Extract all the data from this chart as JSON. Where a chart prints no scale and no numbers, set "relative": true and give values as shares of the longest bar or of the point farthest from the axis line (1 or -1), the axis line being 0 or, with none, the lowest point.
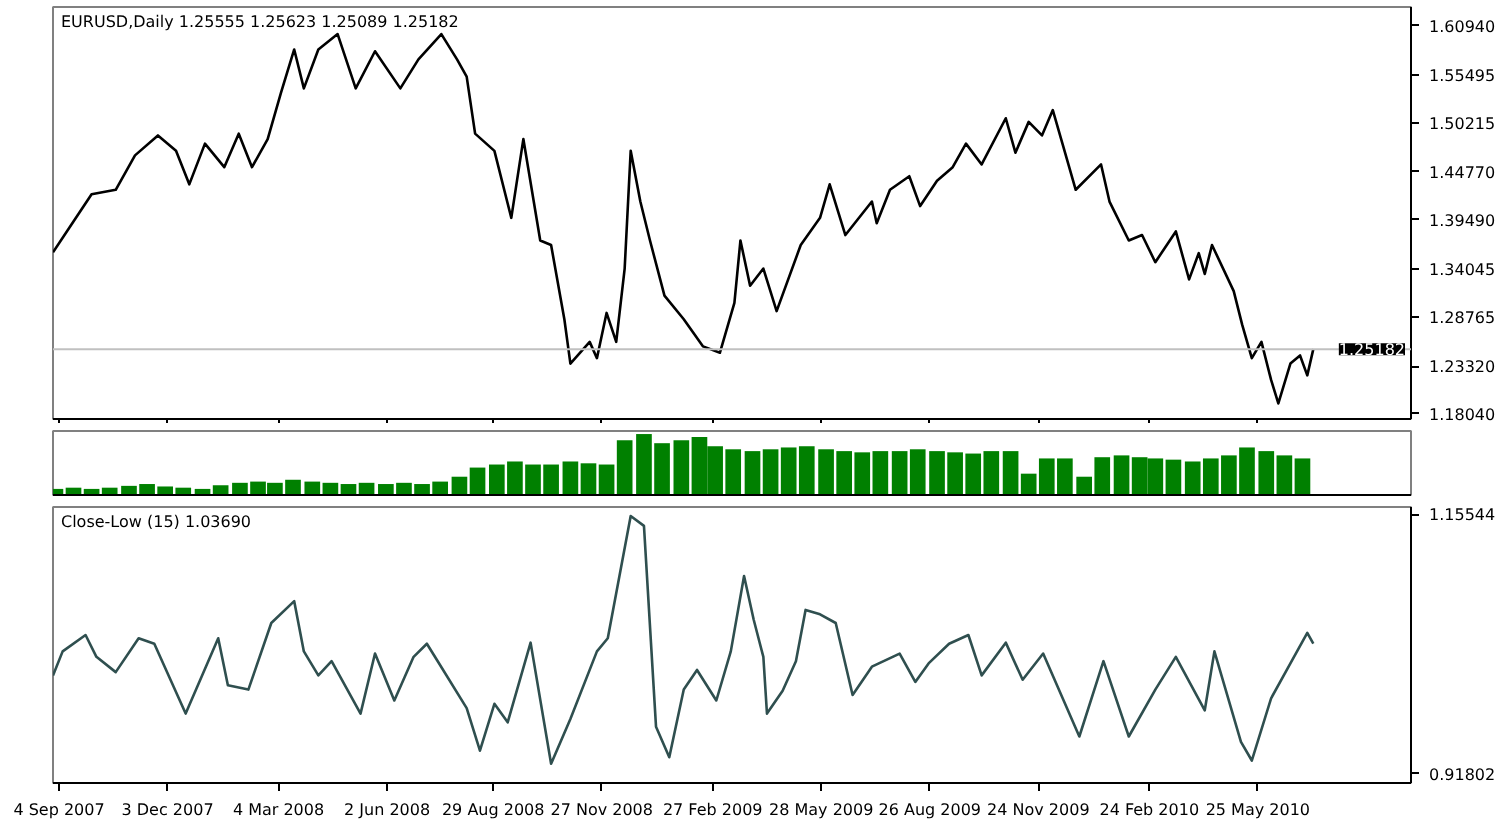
{
  "chart_data": [
    {
      "type": "line",
      "title": "EURUSD,Daily 1.25555 1.25623 1.25089 1.25182",
      "series": [
        {
          "type": "line",
          "color": "#000000",
          "x": [
            "2007-08-30",
            "2007-09-15",
            "2007-10-01",
            "2007-10-21",
            "2007-11-06",
            "2007-11-25",
            "2007-12-10",
            "2007-12-21",
            "2008-01-03",
            "2008-01-19",
            "2008-01-31",
            "2008-02-11",
            "2008-02-24",
            "2008-03-06",
            "2008-03-17",
            "2008-03-25",
            "2008-04-06",
            "2008-04-22",
            "2008-05-07",
            "2008-05-23",
            "2008-06-13",
            "2008-06-28",
            "2008-07-17",
            "2008-07-30",
            "2008-08-07",
            "2008-08-14",
            "2008-08-30",
            "2008-09-13",
            "2008-09-23",
            "2008-10-07",
            "2008-10-16",
            "2008-10-27",
            "2008-11-01",
            "2008-11-17",
            "2008-11-23",
            "2008-12-01",
            "2008-12-09",
            "2008-12-16",
            "2008-12-21",
            "2008-12-29",
            "2009-01-06",
            "2009-01-18",
            "2009-02-03",
            "2009-02-19",
            "2009-03-05",
            "2009-03-17",
            "2009-03-22",
            "2009-03-30",
            "2009-04-10",
            "2009-04-21",
            "2009-05-11",
            "2009-05-27",
            "2009-06-04",
            "2009-06-17",
            "2009-07-09",
            "2009-07-13",
            "2009-07-24",
            "2009-08-09",
            "2009-08-18",
            "2009-09-01",
            "2009-09-14",
            "2009-09-25",
            "2009-10-08",
            "2009-10-28",
            "2009-11-05",
            "2009-11-16",
            "2009-11-27",
            "2009-12-06",
            "2009-12-14",
            "2009-12-25",
            "2010-01-15",
            "2010-01-22",
            "2010-02-07",
            "2010-02-18",
            "2010-03-01",
            "2010-03-18",
            "2010-03-29",
            "2010-04-06",
            "2010-04-11",
            "2010-04-17",
            "2010-05-05",
            "2010-05-12",
            "2010-05-20",
            "2010-05-28",
            "2010-06-05",
            "2010-06-11",
            "2010-06-21",
            "2010-06-29",
            "2010-07-05",
            "2010-07-10"
          ],
          "values": [
            1.359,
            1.391,
            1.423,
            1.428,
            1.466,
            1.488,
            1.471,
            1.434,
            1.479,
            1.453,
            1.49,
            1.453,
            1.484,
            1.535,
            1.583,
            1.54,
            1.583,
            1.6,
            1.54,
            1.581,
            1.54,
            1.572,
            1.6,
            1.572,
            1.553,
            1.49,
            1.471,
            1.397,
            1.484,
            1.372,
            1.367,
            1.285,
            1.236,
            1.26,
            1.242,
            1.292,
            1.26,
            1.341,
            1.471,
            1.415,
            1.372,
            1.311,
            1.285,
            1.255,
            1.248,
            1.303,
            1.372,
            1.322,
            1.341,
            1.294,
            1.367,
            1.397,
            1.434,
            1.378,
            1.415,
            1.391,
            1.428,
            1.443,
            1.41,
            1.438,
            1.453,
            1.479,
            1.456,
            1.507,
            1.469,
            1.503,
            1.488,
            1.516,
            1.479,
            1.428,
            1.456,
            1.415,
            1.372,
            1.378,
            1.348,
            1.382,
            1.329,
            1.358,
            1.335,
            1.367,
            1.316,
            1.279,
            1.242,
            1.26,
            1.218,
            1.192,
            1.236,
            1.245,
            1.223,
            1.252
          ]
        }
      ],
      "xlim": [
        "2007-08-30",
        "2010-09-29"
      ],
      "xticks": [
        {
          "value": "2007-09-04",
          "label": null
        },
        {
          "value": "2007-12-03",
          "label": null
        },
        {
          "value": "2008-03-04",
          "label": null
        },
        {
          "value": "2008-06-02",
          "label": null
        },
        {
          "value": "2008-08-29",
          "label": null
        },
        {
          "value": "2008-11-27",
          "label": null
        },
        {
          "value": "2009-02-27",
          "label": null
        },
        {
          "value": "2009-05-28",
          "label": null
        },
        {
          "value": "2009-08-26",
          "label": null
        },
        {
          "value": "2009-11-24",
          "label": null
        },
        {
          "value": "2010-02-24",
          "label": null
        },
        {
          "value": "2010-05-25",
          "label": null
        }
      ],
      "ylim": [
        1.1748,
        1.6299
      ],
      "yticks": [
        {
          "value": 1.6094,
          "label": "1.60940"
        },
        1.55495,
        1.50215,
        {
          "value": 1.4477,
          "label": "1.44770"
        },
        {
          "value": 1.3949,
          "label": "1.39490"
        },
        1.34045,
        1.28765,
        {
          "value": 1.2332,
          "label": "1.23320"
        },
        {
          "value": 1.1804,
          "label": "1.18040"
        }
      ],
      "ref_lines": [
        {
          "axis": "y",
          "value": 1.25182,
          "label": "1.25182",
          "color": "#c0c0c0"
        }
      ],
      "tick_labels": "y",
      "grid": false,
      "line_style": "solid"
    },
    {
      "type": "bar",
      "relative": true,
      "tick_labels": false,
      "xlim": [
        "2007-08-30",
        "2010-09-29"
      ],
      "series": [
        {
          "type": "bar",
          "color": "#008000",
          "x": [
            "2007-09-01",
            "2007-09-16",
            "2007-10-01",
            "2007-10-16",
            "2007-11-01",
            "2007-11-16",
            "2007-12-01",
            "2007-12-16",
            "2008-01-01",
            "2008-01-16",
            "2008-02-01",
            "2008-02-16",
            "2008-03-01",
            "2008-03-16",
            "2008-04-01",
            "2008-04-16",
            "2008-05-01",
            "2008-05-16",
            "2008-06-01",
            "2008-06-16",
            "2008-07-01",
            "2008-07-16",
            "2008-08-01",
            "2008-08-16",
            "2008-09-01",
            "2008-09-16",
            "2008-10-01",
            "2008-10-16",
            "2008-11-01",
            "2008-11-16",
            "2008-12-01",
            "2008-12-16",
            "2009-01-01",
            "2009-01-16",
            "2009-02-01",
            "2009-02-16",
            "2009-03-01",
            "2009-03-16",
            "2009-04-01",
            "2009-04-16",
            "2009-05-01",
            "2009-05-16",
            "2009-06-01",
            "2009-06-16",
            "2009-07-01",
            "2009-07-16",
            "2009-08-01",
            "2009-08-16",
            "2009-09-01",
            "2009-09-16",
            "2009-10-01",
            "2009-10-16",
            "2009-11-01",
            "2009-11-16",
            "2009-12-01",
            "2009-12-16",
            "2010-01-01",
            "2010-01-16",
            "2010-02-01",
            "2010-02-16",
            "2010-03-01",
            "2010-03-16",
            "2010-04-01",
            "2010-04-16",
            "2010-05-01",
            "2010-05-16",
            "2010-06-01",
            "2010-06-16",
            "2010-07-01"
          ],
          "values": [
            0.1,
            0.12,
            0.1,
            0.12,
            0.15,
            0.18,
            0.14,
            0.12,
            0.1,
            0.16,
            0.2,
            0.22,
            0.2,
            0.25,
            0.22,
            0.2,
            0.18,
            0.2,
            0.18,
            0.2,
            0.18,
            0.22,
            0.3,
            0.45,
            0.5,
            0.55,
            0.5,
            0.5,
            0.55,
            0.52,
            0.5,
            0.9,
            1.0,
            0.85,
            0.9,
            0.95,
            0.8,
            0.75,
            0.72,
            0.75,
            0.78,
            0.8,
            0.75,
            0.72,
            0.7,
            0.72,
            0.72,
            0.75,
            0.72,
            0.7,
            0.68,
            0.72,
            0.72,
            0.35,
            0.6,
            0.6,
            0.3,
            0.62,
            0.65,
            0.62,
            0.6,
            0.58,
            0.55,
            0.6,
            0.65,
            0.78,
            0.72,
            0.65,
            0.6
          ]
        }
      ]
    },
    {
      "type": "line",
      "title": "Close-Low (15) 1.03690",
      "color": "#2f4f4f",
      "x": [
        "2007-08-30",
        "2007-09-07",
        "2007-09-26",
        "2007-10-05",
        "2007-10-21",
        "2007-11-09",
        "2007-11-22",
        "2007-12-18",
        "2008-01-14",
        "2008-01-22",
        "2008-02-08",
        "2008-02-27",
        "2008-03-17",
        "2008-03-25",
        "2008-04-06",
        "2008-04-17",
        "2008-05-11",
        "2008-05-23",
        "2008-06-08",
        "2008-06-24",
        "2008-07-05",
        "2008-07-14",
        "2008-08-07",
        "2008-08-18",
        "2008-08-30",
        "2008-09-10",
        "2008-09-29",
        "2008-10-16",
        "2008-11-01",
        "2008-11-23",
        "2008-12-02",
        "2008-12-21",
        "2009-01-01",
        "2009-01-11",
        "2009-01-22",
        "2009-02-03",
        "2009-02-14",
        "2009-03-02",
        "2009-03-14",
        "2009-03-25",
        "2009-04-02",
        "2009-04-10",
        "2009-04-13",
        "2009-04-26",
        "2009-05-07",
        "2009-05-15",
        "2009-05-27",
        "2009-06-09",
        "2009-06-23",
        "2009-07-09",
        "2009-08-01",
        "2009-08-14",
        "2009-08-25",
        "2009-09-11",
        "2009-09-27",
        "2009-10-08",
        "2009-10-28",
        "2009-11-11",
        "2009-11-28",
        "2009-12-28",
        "2010-01-17",
        "2010-02-07",
        "2010-03-01",
        "2010-03-18",
        "2010-04-11",
        "2010-04-19",
        "2010-05-11",
        "2010-05-20",
        "2010-06-05",
        "2010-06-21",
        "2010-07-05",
        "2010-07-10"
      ],
      "values": [
        1.008,
        1.03,
        1.045,
        1.025,
        1.011,
        1.042,
        1.037,
        0.973,
        1.042,
        0.999,
        0.995,
        1.056,
        1.076,
        1.03,
        1.008,
        1.021,
        0.973,
        1.028,
        0.985,
        1.025,
        1.037,
        1.021,
        0.978,
        0.939,
        0.982,
        0.965,
        1.038,
        0.927,
        0.968,
        1.03,
        1.042,
        1.154,
        1.145,
        0.961,
        0.933,
        0.995,
        1.013,
        0.985,
        1.03,
        1.099,
        1.059,
        1.025,
        0.973,
        0.994,
        1.021,
        1.068,
        1.064,
        1.056,
        0.99,
        1.016,
        1.028,
        1.002,
        1.019,
        1.037,
        1.045,
        1.008,
        1.038,
        1.004,
        1.028,
        0.952,
        1.021,
        0.952,
        0.995,
        1.025,
        0.976,
        1.03,
        0.947,
        0.93,
        0.987,
        1.019,
        1.047,
        1.037
      ],
      "xlim": [
        "2007-08-30",
        "2010-09-29"
      ],
      "xticks": [
        {
          "value": "2007-09-04",
          "label": "4 Sep 2007"
        },
        {
          "value": "2007-12-03",
          "label": "3 Dec 2007"
        },
        {
          "value": "2008-03-04",
          "label": "4 Mar 2008"
        },
        {
          "value": "2008-06-02",
          "label": "2 Jun 2008"
        },
        {
          "value": "2008-08-29",
          "label": "29 Aug 2008"
        },
        {
          "value": "2008-11-27",
          "label": "27 Nov 2008"
        },
        {
          "value": "2009-02-27",
          "label": "27 Feb 2009"
        },
        {
          "value": "2009-05-28",
          "label": "28 May 2009"
        },
        {
          "value": "2009-08-26",
          "label": "26 Aug 2009"
        },
        {
          "value": "2009-11-24",
          "label": "24 Nov 2009"
        },
        {
          "value": "2010-02-24",
          "label": "24 Feb 2010"
        },
        {
          "value": "2010-05-25",
          "label": "25 May 2010"
        }
      ],
      "ylim": [
        0.9094,
        1.1623
      ],
      "yticks": [
        1.15544,
        0.91802
      ],
      "grid": false,
      "line_style": "solid"
    }
  ]
}
